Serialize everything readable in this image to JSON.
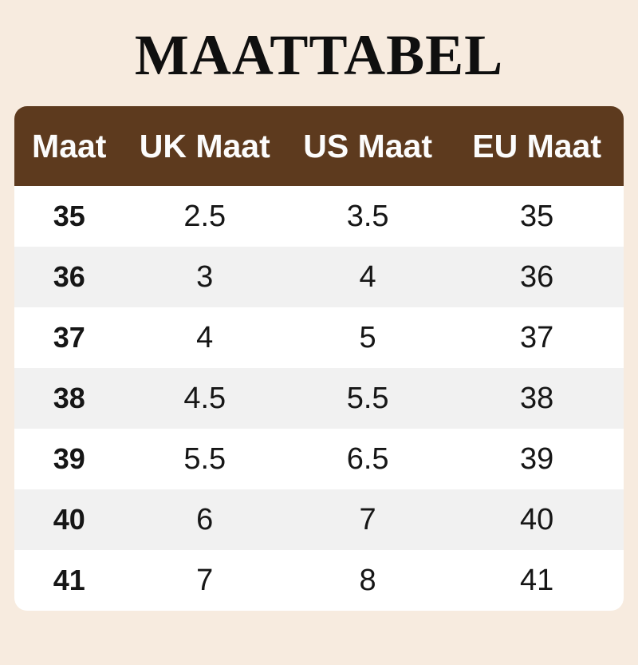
{
  "title": "MAATTABEL",
  "colors": {
    "page_background": "#F7EBDF",
    "header_background": "#5D3A1E",
    "header_text": "#FCFCFC",
    "row_white": "#FFFFFF",
    "row_alt": "#F1F1F1",
    "data_text": "#161616",
    "title_text": "#0F0F0F"
  },
  "chart_data": {
    "type": "table",
    "title": "MAATTABEL",
    "columns": [
      "Maat",
      "UK Maat",
      "US Maat",
      "EU Maat"
    ],
    "rows": [
      [
        "35",
        "2.5",
        "3.5",
        "35"
      ],
      [
        "36",
        "3",
        "4",
        "36"
      ],
      [
        "37",
        "4",
        "5",
        "37"
      ],
      [
        "38",
        "4.5",
        "5.5",
        "38"
      ],
      [
        "39",
        "5.5",
        "6.5",
        "39"
      ],
      [
        "40",
        "6",
        "7",
        "40"
      ],
      [
        "41",
        "7",
        "8",
        "41"
      ]
    ],
    "layout_hints": {
      "first_column_bold": true,
      "alternating_row_shading": true,
      "header_style": "solid brown bar, white bold text, rounded top corners"
    }
  }
}
